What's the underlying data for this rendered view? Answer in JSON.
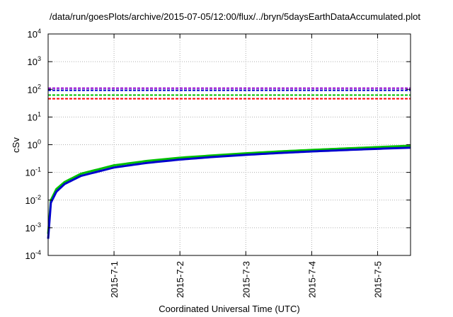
{
  "chart_data": {
    "type": "line",
    "title": "/data/run/goesPlots/archive/2015-07-05/12:00/flux/../bryn/5daysEarthDataAccumulated.plot",
    "xlabel": "Coordinated Universal Time (UTC)",
    "ylabel": "cSv",
    "y_scale": "log",
    "ylim": [
      0.0001,
      10000
    ],
    "y_ticks": [
      {
        "value": 0.0001,
        "base": "10",
        "exp": "-4"
      },
      {
        "value": 0.001,
        "base": "10",
        "exp": "-3"
      },
      {
        "value": 0.01,
        "base": "10",
        "exp": "-2"
      },
      {
        "value": 0.1,
        "base": "10",
        "exp": "-1"
      },
      {
        "value": 1,
        "base": "10",
        "exp": "0"
      },
      {
        "value": 10,
        "base": "10",
        "exp": "1"
      },
      {
        "value": 100,
        "base": "10",
        "exp": "2"
      },
      {
        "value": 1000,
        "base": "10",
        "exp": "3"
      },
      {
        "value": 10000,
        "base": "10",
        "exp": "4"
      }
    ],
    "xlim": [
      "2015-06-30T00:00",
      "2015-07-05T12:00"
    ],
    "x_ticks": [
      "2015-7-1",
      "2015-7-2",
      "2015-7-3",
      "2015-7-4",
      "2015-7-5"
    ],
    "x_tick_values": [
      "2015-07-01",
      "2015-07-02",
      "2015-07-03",
      "2015-07-04",
      "2015-07-05"
    ],
    "grid": true,
    "threshold_lines": [
      {
        "value": 110,
        "color": "#9400d3",
        "style": "dashed"
      },
      {
        "value": 92,
        "color": "#0000cd",
        "style": "dashed"
      },
      {
        "value": 62,
        "color": "#00c000",
        "style": "dashed"
      },
      {
        "value": 46,
        "color": "#ff0000",
        "style": "dashed"
      }
    ],
    "series": [
      {
        "color": "#00c000",
        "x": [
          "2015-06-30T00:00",
          "2015-06-30T01:00",
          "2015-06-30T03:00",
          "2015-06-30T06:00",
          "2015-06-30T12:00",
          "2015-07-01T00:00",
          "2015-07-01T12:00",
          "2015-07-02T00:00",
          "2015-07-02T12:00",
          "2015-07-03T00:00",
          "2015-07-03T12:00",
          "2015-07-04T00:00",
          "2015-07-04T12:00",
          "2015-07-05T00:00",
          "2015-07-05T12:00"
        ],
        "y": [
          0.0006,
          0.01,
          0.025,
          0.045,
          0.09,
          0.18,
          0.26,
          0.34,
          0.41,
          0.49,
          0.57,
          0.65,
          0.73,
          0.82,
          0.92
        ]
      },
      {
        "color": "#0000cd",
        "x": [
          "2015-06-30T00:00",
          "2015-06-30T01:00",
          "2015-06-30T03:00",
          "2015-06-30T06:00",
          "2015-06-30T12:00",
          "2015-07-01T00:00",
          "2015-07-01T12:00",
          "2015-07-02T00:00",
          "2015-07-02T12:00",
          "2015-07-03T00:00",
          "2015-07-03T12:00",
          "2015-07-04T00:00",
          "2015-07-04T12:00",
          "2015-07-05T00:00",
          "2015-07-05T12:00"
        ],
        "y": [
          0.0004,
          0.008,
          0.02,
          0.038,
          0.075,
          0.15,
          0.22,
          0.29,
          0.36,
          0.43,
          0.5,
          0.57,
          0.64,
          0.71,
          0.78
        ]
      }
    ]
  }
}
